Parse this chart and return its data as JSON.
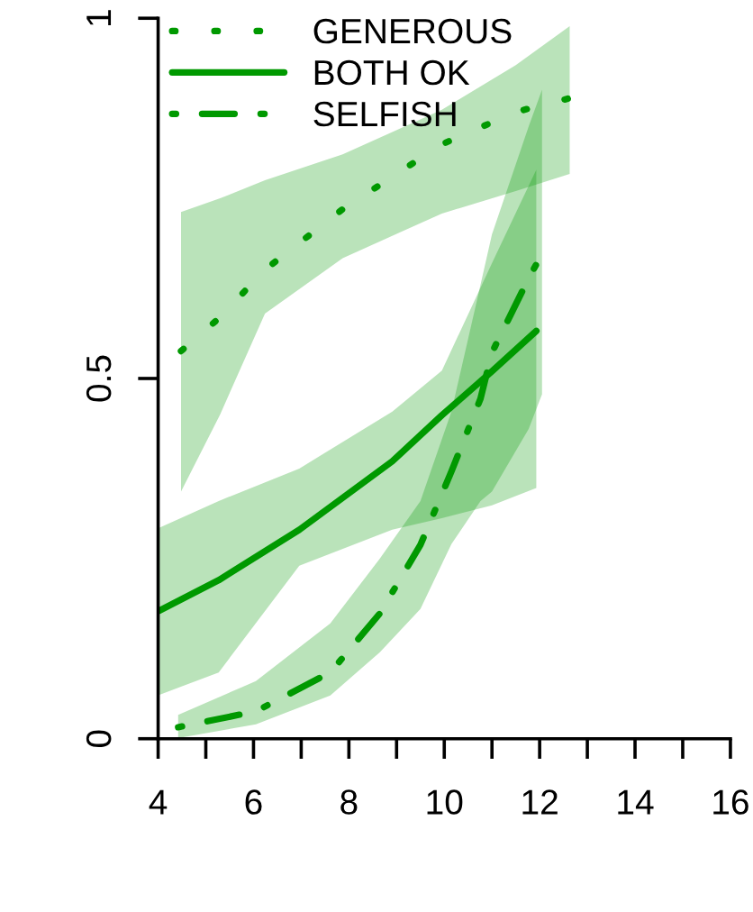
{
  "chart_data": {
    "type": "line",
    "series": [
      {
        "name": "GENEROUS",
        "color": "#009900",
        "line_style": "dotted",
        "x": [
          4.48,
          5.3,
          6.24,
          7.87,
          9.95,
          11.5,
          12.63
        ],
        "values": [
          0.538,
          0.585,
          0.651,
          0.735,
          0.825,
          0.87,
          0.889
        ],
        "lower": [
          0.343,
          0.45,
          0.59,
          0.667,
          0.729,
          0.76,
          0.784
        ],
        "upper": [
          0.731,
          0.75,
          0.775,
          0.811,
          0.873,
          0.935,
          0.989
        ]
      },
      {
        "name": "BOTH OK",
        "color": "#009900",
        "line_style": "solid",
        "x": [
          4.03,
          5.27,
          6.96,
          8.91,
          9.95,
          11.0,
          11.93
        ],
        "values": [
          0.178,
          0.22,
          0.29,
          0.385,
          0.449,
          0.51,
          0.566
        ],
        "lower": [
          0.061,
          0.092,
          0.24,
          0.29,
          0.306,
          0.324,
          0.348
        ],
        "upper": [
          0.293,
          0.33,
          0.375,
          0.454,
          0.511,
          0.66,
          0.79
        ]
      },
      {
        "name": "SELFISH",
        "color": "#009900",
        "line_style": "dashdot",
        "x": [
          4.42,
          6.05,
          7.61,
          8.65,
          9.5,
          10.15,
          10.76,
          11.0,
          11.77,
          12.05
        ],
        "values": [
          0.016,
          0.038,
          0.092,
          0.174,
          0.269,
          0.371,
          0.472,
          0.536,
          0.639,
          0.673
        ],
        "lower": [
          0.001,
          0.02,
          0.06,
          0.12,
          0.18,
          0.27,
          0.33,
          0.343,
          0.43,
          0.478
        ],
        "upper": [
          0.033,
          0.08,
          0.16,
          0.25,
          0.33,
          0.454,
          0.63,
          0.7,
          0.85,
          0.901
        ]
      }
    ],
    "xlim": [
      4,
      16
    ],
    "xticks": [
      4,
      {
        "value": 5,
        "label": null
      },
      6,
      {
        "value": 7,
        "label": null
      },
      8,
      {
        "value": 9,
        "label": null
      },
      10,
      {
        "value": 11,
        "label": null
      },
      12,
      {
        "value": 13,
        "label": null
      },
      14,
      {
        "value": 15,
        "label": null
      },
      16
    ],
    "ylim": [
      0,
      1
    ],
    "yticks": [
      0,
      0.5,
      1
    ],
    "grid": false,
    "legend": "top left",
    "marker": "none"
  }
}
